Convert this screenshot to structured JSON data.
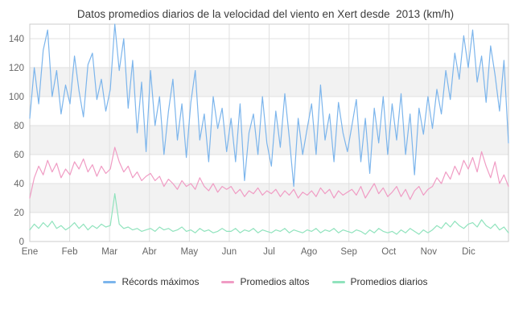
{
  "chart_data": {
    "type": "line",
    "title": "Datos promedios diarios de la velocidad del viento en Xert desde  2013 (km/h)",
    "xlabel": "",
    "ylabel": "",
    "x_tick_labels": [
      "Ene",
      "Feb",
      "Mar",
      "Abr",
      "May",
      "Jun",
      "Jul",
      "Ago",
      "Sep",
      "Oct",
      "Nov",
      "Dic"
    ],
    "y_ticks": [
      0,
      20,
      40,
      60,
      80,
      100,
      120,
      140
    ],
    "ylim": [
      0,
      150
    ],
    "grid": true,
    "alternating_bands": [
      [
        20,
        40
      ],
      [
        60,
        80
      ],
      [
        100,
        120
      ]
    ],
    "band_color": "#f2f2f2",
    "grid_color": "#e0e0e0",
    "border_color": "#cccccc",
    "title_color": "#3c3c3c",
    "axis_label_color": "#666666",
    "legend_text_color": "#333333",
    "legend_position": "bottom",
    "series": [
      {
        "name": "Récords máximos",
        "color": "#7cb5ec",
        "values": [
          85,
          120,
          95,
          132,
          146,
          100,
          118,
          88,
          108,
          95,
          128,
          104,
          86,
          122,
          130,
          98,
          112,
          90,
          105,
          150,
          118,
          140,
          92,
          125,
          75,
          110,
          62,
          118,
          80,
          100,
          60,
          90,
          112,
          70,
          95,
          58,
          96,
          118,
          70,
          88,
          55,
          100,
          78,
          92,
          62,
          85,
          55,
          95,
          42,
          75,
          88,
          60,
          100,
          68,
          52,
          90,
          65,
          102,
          72,
          38,
          85,
          60,
          78,
          95,
          60,
          108,
          70,
          88,
          55,
          96,
          75,
          62,
          80,
          98,
          55,
          85,
          47,
          92,
          68,
          100,
          60,
          95,
          70,
          102,
          60,
          88,
          46,
          92,
          74,
          100,
          78,
          105,
          88,
          118,
          98,
          130,
          112,
          142,
          120,
          146,
          110,
          128,
          96,
          135,
          115,
          90,
          125,
          68
        ]
      },
      {
        "name": "Promedios altos",
        "color": "#f09cc4",
        "values": [
          30,
          44,
          52,
          46,
          56,
          48,
          54,
          44,
          50,
          46,
          55,
          50,
          57,
          48,
          53,
          45,
          52,
          47,
          50,
          65,
          55,
          48,
          52,
          44,
          48,
          42,
          45,
          47,
          42,
          45,
          38,
          43,
          40,
          36,
          42,
          38,
          40,
          36,
          44,
          38,
          35,
          40,
          34,
          38,
          36,
          38,
          33,
          36,
          31,
          35,
          33,
          37,
          32,
          35,
          33,
          36,
          31,
          35,
          32,
          36,
          30,
          34,
          32,
          35,
          31,
          37,
          33,
          36,
          30,
          35,
          32,
          34,
          36,
          32,
          38,
          30,
          35,
          40,
          33,
          37,
          31,
          34,
          38,
          31,
          36,
          29,
          35,
          38,
          32,
          36,
          38,
          44,
          40,
          48,
          43,
          52,
          46,
          56,
          50,
          58,
          48,
          62,
          52,
          44,
          55,
          40,
          46,
          38
        ]
      },
      {
        "name": "Promedios diarios",
        "color": "#90e3bd",
        "values": [
          8,
          12,
          9,
          13,
          10,
          14,
          9,
          11,
          8,
          10,
          13,
          9,
          12,
          8,
          11,
          9,
          12,
          10,
          11,
          33,
          12,
          9,
          10,
          8,
          9,
          7,
          8,
          9,
          7,
          10,
          8,
          9,
          7,
          8,
          10,
          7,
          8,
          6,
          9,
          7,
          8,
          6,
          7,
          9,
          7,
          7,
          9,
          6,
          8,
          7,
          9,
          6,
          8,
          7,
          6,
          8,
          7,
          9,
          6,
          8,
          7,
          6,
          8,
          7,
          9,
          6,
          8,
          7,
          9,
          6,
          8,
          7,
          6,
          8,
          7,
          5,
          8,
          6,
          9,
          7,
          6,
          7,
          5,
          8,
          6,
          9,
          7,
          5,
          8,
          6,
          8,
          11,
          9,
          13,
          10,
          14,
          11,
          9,
          12,
          13,
          10,
          15,
          11,
          9,
          12,
          8,
          10,
          6
        ]
      }
    ]
  }
}
